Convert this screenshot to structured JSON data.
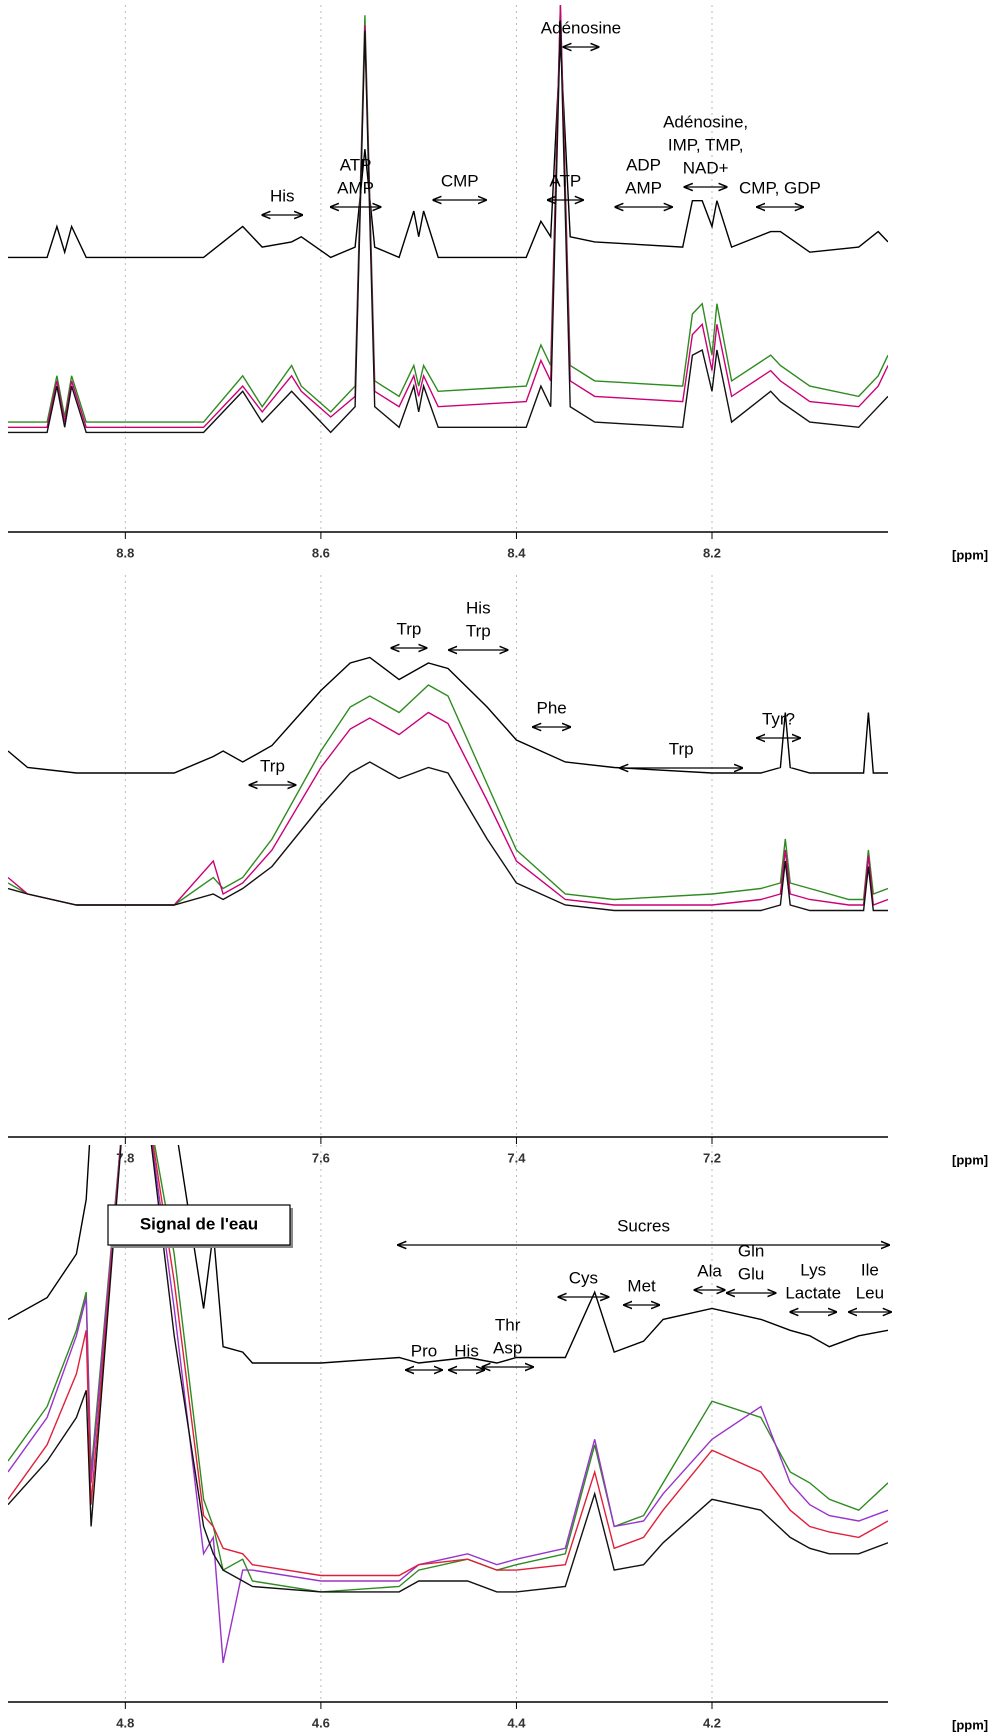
{
  "chart_data": [
    {
      "type": "line",
      "xlabel": "[ppm]",
      "xlim": [
        8.92,
        8.02
      ],
      "xticks": [
        8.8,
        8.6,
        8.4,
        8.2
      ],
      "ylim": [
        0,
        100
      ],
      "grid": true,
      "x": [
        8.92,
        8.88,
        8.87,
        8.862,
        8.855,
        8.84,
        8.72,
        8.68,
        8.66,
        8.63,
        8.62,
        8.59,
        8.565,
        8.555,
        8.545,
        8.52,
        8.505,
        8.5,
        8.495,
        8.48,
        8.39,
        8.375,
        8.365,
        8.355,
        8.345,
        8.32,
        8.23,
        8.22,
        8.21,
        8.2,
        8.195,
        8.18,
        8.14,
        8.13,
        8.1,
        8.05,
        8.03,
        8.02
      ],
      "series": [
        {
          "color": "#000000",
          "values": [
            51,
            51,
            57,
            52,
            57,
            51,
            51,
            57,
            53,
            54,
            55,
            51,
            53,
            72,
            53,
            51,
            60,
            55,
            60,
            51,
            51,
            58,
            55,
            93,
            55,
            54,
            53,
            62,
            62,
            57,
            62,
            53,
            56,
            56,
            52,
            53,
            56,
            54
          ]
        },
        {
          "color": "#2e8b20",
          "values": [
            19,
            19,
            28,
            20,
            28,
            19,
            19,
            28,
            22,
            30,
            26,
            21,
            26,
            98,
            27,
            24,
            30,
            26,
            30,
            25,
            26,
            34,
            30,
            100,
            30,
            27,
            26,
            40,
            42,
            32,
            42,
            27,
            32,
            30,
            26,
            24,
            28,
            32
          ]
        },
        {
          "color": "#cc0077",
          "values": [
            18,
            18,
            27,
            19,
            27,
            18,
            18,
            26,
            21,
            28,
            25,
            20,
            24,
            96,
            25,
            22,
            28,
            24,
            28,
            22,
            23,
            31,
            27,
            100,
            27,
            24,
            23,
            36,
            38,
            29,
            38,
            24,
            29,
            27,
            23,
            22,
            26,
            30
          ]
        },
        {
          "color": "#111111",
          "values": [
            17,
            17,
            26,
            18,
            26,
            17,
            17,
            25,
            19,
            25,
            23,
            17,
            22,
            95,
            22,
            18,
            26,
            21,
            26,
            18,
            18,
            26,
            22,
            97,
            22,
            19,
            18,
            32,
            33,
            25,
            33,
            19,
            25,
            23,
            19,
            18,
            22,
            24
          ]
        }
      ],
      "annotations": [
        {
          "label": [
            "His"
          ],
          "range": [
            8.66,
            8.619
          ]
        },
        {
          "label": [
            "ATP",
            "AMP"
          ],
          "range": [
            8.59,
            8.539
          ]
        },
        {
          "label": [
            "CMP"
          ],
          "range": [
            8.485,
            8.431
          ]
        },
        {
          "label": [
            "ATP"
          ],
          "range": [
            8.368,
            8.332
          ]
        },
        {
          "label": [
            "Adénosine"
          ],
          "range": [
            8.352,
            8.316
          ]
        },
        {
          "label": [
            "ADP",
            "AMP"
          ],
          "range": [
            8.299,
            8.241
          ]
        },
        {
          "label": [
            "Adénosine,",
            "IMP, TMP,",
            "NAD+"
          ],
          "range": [
            8.228,
            8.185
          ]
        },
        {
          "label": [
            "CMP, GDP"
          ],
          "range": [
            8.154,
            8.107
          ]
        }
      ]
    },
    {
      "type": "line",
      "xlabel": "[ppm]",
      "xlim": [
        7.92,
        7.02
      ],
      "xticks": [
        7.8,
        7.6,
        7.4,
        7.2
      ],
      "ylim": [
        0,
        100
      ],
      "grid": true,
      "x": [
        7.92,
        7.9,
        7.85,
        7.75,
        7.71,
        7.7,
        7.68,
        7.65,
        7.6,
        7.57,
        7.55,
        7.52,
        7.49,
        7.47,
        7.43,
        7.4,
        7.35,
        7.3,
        7.2,
        7.15,
        7.13,
        7.125,
        7.12,
        7.1,
        7.06,
        7.045,
        7.04,
        7.035,
        7.02
      ],
      "series": [
        {
          "color": "#000000",
          "values": [
            68,
            65,
            64,
            64,
            67,
            68,
            66,
            69,
            79,
            84,
            85,
            81,
            84,
            83,
            76,
            70,
            66,
            65,
            64,
            64,
            65,
            75,
            65,
            64,
            64,
            64,
            75,
            64,
            64
          ]
        },
        {
          "color": "#2e8b20",
          "values": [
            44,
            42,
            40,
            40,
            45,
            43,
            45,
            52,
            68,
            76,
            78,
            75,
            80,
            78,
            62,
            50,
            42,
            41,
            42,
            43,
            44,
            52,
            44,
            43,
            41,
            41,
            50,
            42,
            43
          ]
        },
        {
          "color": "#cc0077",
          "values": [
            45,
            42,
            40,
            40,
            48,
            42,
            44,
            50,
            65,
            72,
            74,
            71,
            75,
            73,
            59,
            48,
            41,
            40,
            40,
            41,
            42,
            50,
            42,
            41,
            40,
            40,
            49,
            40,
            41
          ]
        },
        {
          "color": "#111111",
          "values": [
            43,
            42,
            40,
            40,
            42,
            41,
            43,
            47,
            58,
            64,
            66,
            63,
            65,
            64,
            52,
            44,
            40,
            39,
            39,
            39,
            40,
            48,
            40,
            39,
            39,
            39,
            47,
            39,
            39
          ]
        }
      ],
      "annotations": [
        {
          "label": [
            "Trp"
          ],
          "range": [
            7.673,
            7.626
          ]
        },
        {
          "label": [
            "Trp"
          ],
          "range": [
            7.528,
            7.492
          ]
        },
        {
          "label": [
            "His",
            "Trp"
          ],
          "range": [
            7.469,
            7.409
          ]
        },
        {
          "label": [
            "Phe"
          ],
          "range": [
            7.383,
            7.345
          ]
        },
        {
          "label": [
            "Trp"
          ],
          "range": [
            7.294,
            7.169
          ]
        },
        {
          "label": [
            "Tyr?"
          ],
          "range": [
            7.154,
            7.11
          ]
        }
      ]
    },
    {
      "type": "line",
      "xlabel": "[ppm]",
      "xlim": [
        4.92,
        4.02
      ],
      "xticks": [
        4.8,
        4.6,
        4.4,
        4.2
      ],
      "ylim": [
        0,
        100
      ],
      "grid": true,
      "callout": "Signal de l'eau",
      "x": [
        4.92,
        4.88,
        4.85,
        4.84,
        4.835,
        4.8,
        4.78,
        4.75,
        4.72,
        4.71,
        4.7,
        4.68,
        4.67,
        4.6,
        4.52,
        4.5,
        4.45,
        4.42,
        4.4,
        4.35,
        4.32,
        4.3,
        4.27,
        4.25,
        4.2,
        4.15,
        4.12,
        4.1,
        4.08,
        4.05,
        4.02
      ],
      "series": [
        {
          "color": "#000000",
          "values": [
            68,
            72,
            80,
            90,
            105,
            105,
            105,
            105,
            70,
            84,
            63,
            62,
            60,
            60,
            61,
            60,
            61,
            60,
            61,
            61,
            73,
            62,
            64,
            68,
            70,
            68,
            66,
            65,
            63,
            65,
            66
          ]
        },
        {
          "color": "#2e8b20",
          "values": [
            42,
            52,
            66,
            73,
            40,
            110,
            110,
            80,
            35,
            30,
            22,
            24,
            20,
            18,
            19,
            22,
            24,
            22,
            23,
            25,
            45,
            30,
            32,
            38,
            53,
            50,
            40,
            38,
            35,
            33,
            38
          ]
        },
        {
          "color": "#9933cc",
          "values": [
            40,
            50,
            65,
            72,
            38,
            110,
            110,
            70,
            25,
            28,
            5,
            22,
            22,
            20,
            20,
            23,
            25,
            23,
            24,
            26,
            46,
            30,
            31,
            36,
            46,
            52,
            38,
            34,
            32,
            31,
            33
          ]
        },
        {
          "color": "#e0203a",
          "values": [
            35,
            45,
            58,
            66,
            34,
            110,
            110,
            75,
            32,
            30,
            26,
            25,
            23,
            21,
            21,
            23,
            24,
            22,
            22,
            23,
            40,
            26,
            28,
            33,
            44,
            40,
            33,
            30,
            29,
            28,
            31
          ]
        },
        {
          "color": "#111111",
          "values": [
            34,
            42,
            50,
            55,
            30,
            110,
            110,
            65,
            30,
            25,
            22,
            20,
            19,
            18,
            18,
            20,
            20,
            18,
            18,
            19,
            36,
            22,
            23,
            27,
            35,
            33,
            28,
            26,
            25,
            25,
            27
          ]
        }
      ],
      "annotations": [
        {
          "label": [
            "Sucres"
          ],
          "range": [
            4.521,
            4.019
          ]
        },
        {
          "label": [
            "Cys"
          ],
          "range": [
            4.357,
            4.306
          ]
        },
        {
          "label": [
            "Met"
          ],
          "range": [
            4.29,
            4.254
          ]
        },
        {
          "label": [
            "Ala"
          ],
          "range": [
            4.218,
            4.187
          ]
        },
        {
          "label": [
            "Gln",
            "Glu"
          ],
          "range": [
            4.185,
            4.135
          ]
        },
        {
          "label": [
            "Lys",
            "Lactate"
          ],
          "range": [
            4.12,
            4.073
          ]
        },
        {
          "label": [
            "Ile",
            "Leu"
          ],
          "range": [
            4.06,
            4.017
          ]
        },
        {
          "label": [
            "Pro"
          ],
          "range": [
            4.513,
            4.476
          ]
        },
        {
          "label": [
            "His"
          ],
          "range": [
            4.469,
            4.433
          ]
        },
        {
          "label": [
            "Thr",
            "Asp"
          ],
          "range": [
            4.435,
            4.383
          ]
        }
      ]
    }
  ]
}
